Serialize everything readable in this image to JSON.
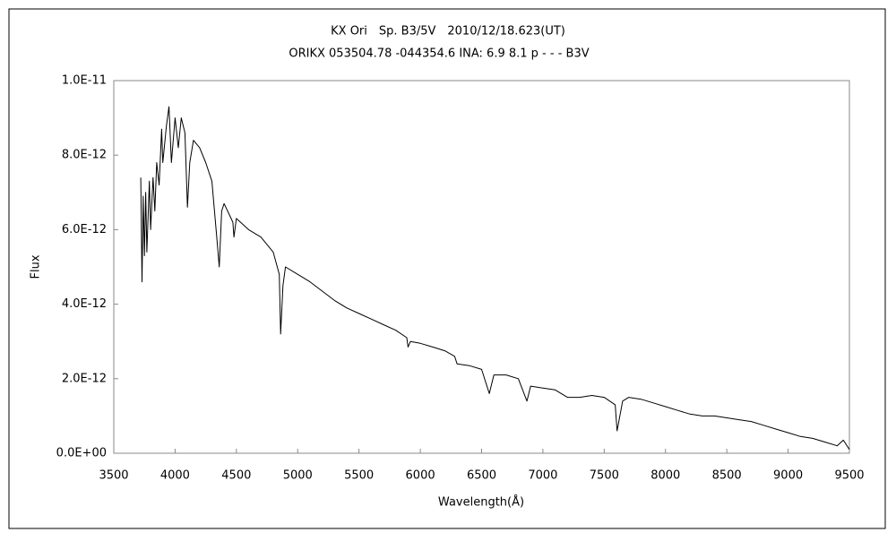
{
  "chart_data": {
    "type": "line",
    "title": "KX Ori　Sp. B3/5V　2010/12/18.623(UT)",
    "subtitle": "ORIKX 053504.78 -044354.6 INA: 6.9 8.1 p - - - B3V",
    "xlabel": "Wavelength(Å)",
    "ylabel": "Flux",
    "x": [
      3720,
      3730,
      3740,
      3750,
      3760,
      3770,
      3790,
      3800,
      3820,
      3835,
      3850,
      3870,
      3890,
      3900,
      3930,
      3950,
      3970,
      4000,
      4026,
      4050,
      4080,
      4101,
      4120,
      4150,
      4200,
      4250,
      4300,
      4340,
      4360,
      4380,
      4400,
      4471,
      4480,
      4500,
      4600,
      4700,
      4800,
      4850,
      4861,
      4880,
      4900,
      5000,
      5100,
      5200,
      5300,
      5400,
      5500,
      5600,
      5700,
      5800,
      5890,
      5900,
      5920,
      6000,
      6100,
      6200,
      6280,
      6300,
      6400,
      6500,
      6563,
      6600,
      6700,
      6800,
      6870,
      6900,
      7000,
      7100,
      7200,
      7300,
      7400,
      7500,
      7590,
      7605,
      7650,
      7700,
      7800,
      7900,
      8000,
      8100,
      8200,
      8300,
      8400,
      8500,
      8600,
      8700,
      8800,
      8900,
      9000,
      9100,
      9200,
      9300,
      9400,
      9450,
      9500
    ],
    "series": [
      {
        "name": "Flux",
        "color": "#000000",
        "values": [
          7.4e-12,
          4.6e-12,
          6.9e-12,
          5.3e-12,
          7e-12,
          5.4e-12,
          7.3e-12,
          6e-12,
          7.4e-12,
          6.5e-12,
          7.8e-12,
          7.2e-12,
          8.7e-12,
          7.8e-12,
          8.8e-12,
          9.3e-12,
          7.8e-12,
          9e-12,
          8.2e-12,
          9e-12,
          8.6e-12,
          6.6e-12,
          7.8e-12,
          8.4e-12,
          8.2e-12,
          7.8e-12,
          7.3e-12,
          5.8e-12,
          5e-12,
          6.5e-12,
          6.7e-12,
          6.2e-12,
          5.8e-12,
          6.3e-12,
          6e-12,
          5.8e-12,
          5.4e-12,
          4.8e-12,
          3.2e-12,
          4.5e-12,
          5e-12,
          4.8e-12,
          4.6e-12,
          4.35e-12,
          4.1e-12,
          3.9e-12,
          3.75e-12,
          3.6e-12,
          3.45e-12,
          3.3e-12,
          3.1e-12,
          2.85e-12,
          3e-12,
          2.95e-12,
          2.85e-12,
          2.75e-12,
          2.6e-12,
          2.4e-12,
          2.35e-12,
          2.25e-12,
          1.6e-12,
          2.1e-12,
          2.1e-12,
          2e-12,
          1.4e-12,
          1.8e-12,
          1.75e-12,
          1.7e-12,
          1.5e-12,
          1.5e-12,
          1.55e-12,
          1.5e-12,
          1.3e-12,
          6e-13,
          1.4e-12,
          1.5e-12,
          1.45e-12,
          1.35e-12,
          1.25e-12,
          1.15e-12,
          1.05e-12,
          1e-12,
          1e-12,
          9.5e-13,
          9e-13,
          8.5e-13,
          7.5e-13,
          6.5e-13,
          5.5e-13,
          4.5e-13,
          4e-13,
          3e-13,
          2e-13,
          3.5e-13,
          1e-13
        ]
      }
    ],
    "xlim": [
      3500,
      9500
    ],
    "xticks": [
      3500,
      4000,
      4500,
      5000,
      5500,
      6000,
      6500,
      7000,
      7500,
      8000,
      8500,
      9000,
      9500
    ],
    "ylim": [
      0,
      1e-11
    ],
    "yticks": [
      {
        "value": 0,
        "label": "0.0E+00"
      },
      {
        "value": 2e-12,
        "label": "2.0E-12"
      },
      {
        "value": 4e-12,
        "label": "4.0E-12"
      },
      {
        "value": 6e-12,
        "label": "6.0E-12"
      },
      {
        "value": 8e-12,
        "label": "8.0E-12"
      },
      {
        "value": 1e-11,
        "label": "1.0E-11"
      }
    ],
    "grid": false
  }
}
